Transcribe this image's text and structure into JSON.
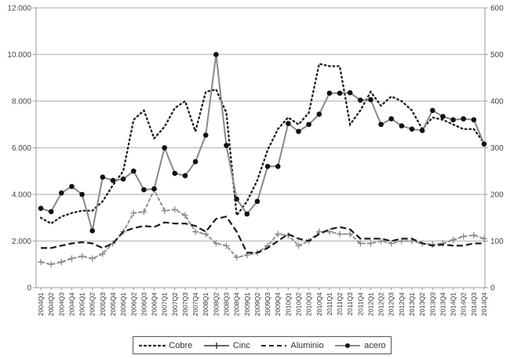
{
  "chart_data": {
    "type": "line",
    "title": "",
    "xlabel": "",
    "ylabel": "",
    "y_left": {
      "range": [
        0,
        12000
      ],
      "ticks": [
        "0",
        "2.000",
        "4.000",
        "6.000",
        "8.000",
        "10.000",
        "12.000"
      ]
    },
    "y_right": {
      "range": [
        0,
        600
      ],
      "ticks": [
        "0",
        "100",
        "200",
        "300",
        "400",
        "500",
        "600"
      ]
    },
    "grid": "horizontal",
    "legend_position": "bottom",
    "x": [
      "2004Q1",
      "2004Q2",
      "2004Q3",
      "2004Q4",
      "2005Q1",
      "2005Q2",
      "2005Q3",
      "2005Q4",
      "2006Q1",
      "2006Q2",
      "2006Q3",
      "2006Q4",
      "2007Q1",
      "2007Q2",
      "2007Q3",
      "2007Q4",
      "2008Q1",
      "2008Q2",
      "2008Q3",
      "2008Q4",
      "2009Q1",
      "2009Q2",
      "2009Q3",
      "2009Q4",
      "2010Q1",
      "2010Q2",
      "2010Q3",
      "2010Q4",
      "2011Q1",
      "2011Q2",
      "2011Q3",
      "2011Q4",
      "2012Q1",
      "2012Q2",
      "2012Q3",
      "2012Q4",
      "2013Q1",
      "2013Q2",
      "2013Q3",
      "2013Q4",
      "2014Q1",
      "2014Q2",
      "2014Q3",
      "2014Q4"
    ],
    "series": [
      {
        "name": "Cobre",
        "axis": "left",
        "style": "dotted",
        "values": [
          3000,
          2750,
          3050,
          3200,
          3300,
          3300,
          3700,
          4400,
          5000,
          7200,
          7600,
          6400,
          6900,
          7700,
          8000,
          6700,
          8400,
          8500,
          7500,
          3100,
          3700,
          4600,
          5900,
          6800,
          7300,
          7000,
          7500,
          9600,
          9500,
          9500,
          7000,
          7600,
          8400,
          7800,
          8200,
          8000,
          7600,
          6800,
          7300,
          7200,
          7000,
          6800,
          6800,
          6200
        ]
      },
      {
        "name": "Cinc",
        "axis": "left",
        "style": "plus",
        "values": [
          1100,
          1000,
          1100,
          1250,
          1350,
          1250,
          1450,
          1900,
          2400,
          3200,
          3250,
          4200,
          3300,
          3350,
          3100,
          2400,
          2300,
          1900,
          1800,
          1300,
          1400,
          1500,
          1800,
          2300,
          2250,
          1800,
          2000,
          2400,
          2400,
          2300,
          2300,
          1900,
          1900,
          2000,
          1900,
          2000,
          2000,
          1900,
          1850,
          1900,
          2050,
          2200,
          2250,
          2100
        ]
      },
      {
        "name": "Aluminio",
        "axis": "left",
        "style": "dashed",
        "values": [
          1700,
          1700,
          1800,
          1900,
          1950,
          1900,
          1700,
          1900,
          2400,
          2550,
          2650,
          2600,
          2800,
          2750,
          2750,
          2650,
          2400,
          2950,
          3050,
          2400,
          1500,
          1500,
          1700,
          2000,
          2300,
          2100,
          2000,
          2300,
          2500,
          2600,
          2500,
          2100,
          2100,
          2100,
          2000,
          2100,
          2100,
          1900,
          1800,
          1850,
          1800,
          1800,
          1900,
          1900
        ]
      },
      {
        "name": "acero",
        "axis": "right",
        "style": "circle",
        "values": [
          170,
          163,
          203,
          217,
          200,
          122,
          237,
          230,
          233,
          250,
          210,
          212,
          300,
          245,
          240,
          270,
          327,
          500,
          305,
          190,
          158,
          185,
          260,
          260,
          352,
          335,
          350,
          372,
          417,
          417,
          418,
          402,
          403,
          350,
          362,
          347,
          340,
          337,
          380,
          367,
          360,
          362,
          360,
          308
        ]
      }
    ]
  },
  "legend": {
    "items": [
      {
        "label": "Cobre"
      },
      {
        "label": "Cinc"
      },
      {
        "label": "Aluminio"
      },
      {
        "label": "acero"
      }
    ]
  },
  "colors": {
    "grid": "#bbbbbb",
    "axis": "#999999",
    "cobre": "#222222",
    "cinc": "#888888",
    "aluminio": "#1a1a1a",
    "acero_line": "#888888",
    "acero_marker": "#111111"
  }
}
